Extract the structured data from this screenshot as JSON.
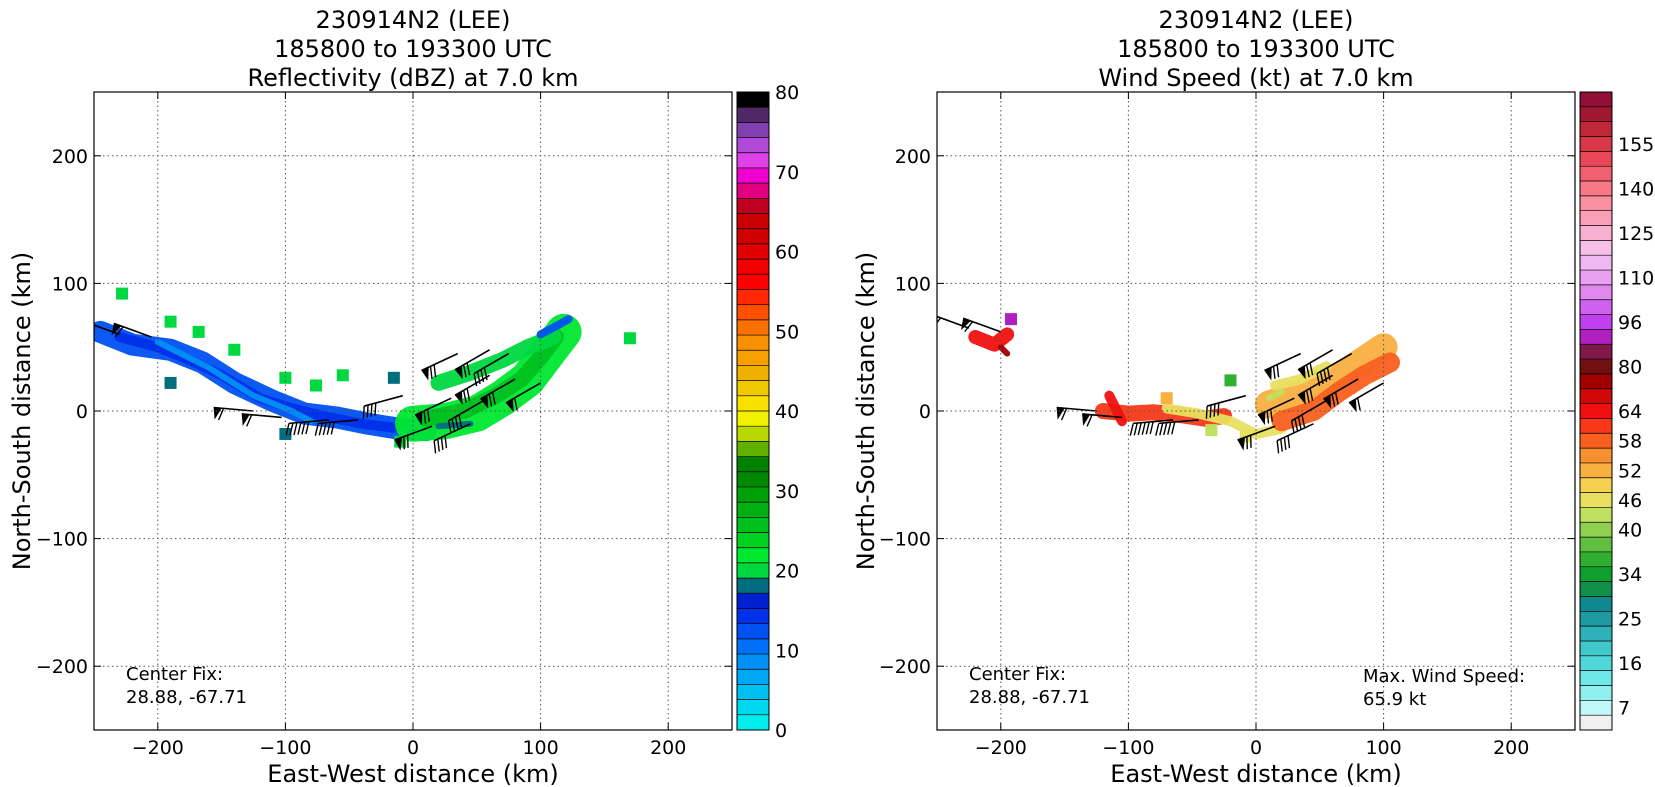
{
  "chart_data": [
    {
      "type": "heatmap",
      "title_lines": [
        "230914N2 (LEE)",
        "185800 to 193300 UTC",
        "Reflectivity (dBZ) at 7.0 km"
      ],
      "xlabel": "East-West distance (km)",
      "ylabel": "North-South distance (km)",
      "xlim": [
        -250,
        250
      ],
      "ylim": [
        -250,
        250
      ],
      "xticks": [
        -200,
        -100,
        0,
        100,
        200
      ],
      "yticks": [
        -200,
        -100,
        0,
        100,
        200
      ],
      "grid": true,
      "annotation_lines": [
        "Center Fix:",
        "28.88, -67.71"
      ],
      "colorbar": {
        "min": 0,
        "max": 80,
        "tick_values": [
          0,
          10,
          20,
          30,
          40,
          50,
          60,
          70,
          80
        ],
        "colors": [
          "#00eeee",
          "#00d8f0",
          "#00c0f2",
          "#00a8f4",
          "#0090f6",
          "#0070f8",
          "#0050f2",
          "#0030ea",
          "#0020d0",
          "#006e7e",
          "#00d840",
          "#00e830",
          "#00d020",
          "#00c020",
          "#00b010",
          "#00a008",
          "#008800",
          "#008000",
          "#60b000",
          "#b8d800",
          "#f0f000",
          "#f8e000",
          "#f0c800",
          "#f0b000",
          "#f8a000",
          "#f89000",
          "#f87000",
          "#ff5000",
          "#ff2800",
          "#ff0000",
          "#f00000",
          "#e00000",
          "#d00000",
          "#c80000",
          "#c00020",
          "#e00080",
          "#f000d0",
          "#e040e8",
          "#b048d8",
          "#8040b0",
          "#502868",
          "#000000"
        ]
      },
      "features": [
        {
          "name": "west-arc-blue",
          "color": "#0050f2",
          "pts": [
            [
              -245,
              62
            ],
            [
              -220,
              52
            ],
            [
              -190,
              48
            ],
            [
              -165,
              38
            ],
            [
              -140,
              22
            ],
            [
              -110,
              8
            ],
            [
              -85,
              -2
            ],
            [
              -60,
              -5
            ],
            [
              -35,
              -10
            ],
            [
              -10,
              -14
            ],
            [
              10,
              -15
            ]
          ],
          "width": 22
        },
        {
          "name": "west-arc-core",
          "color": "#0030ea",
          "pts": [
            [
              -230,
              58
            ],
            [
              -200,
              50
            ],
            [
              -175,
              40
            ],
            [
              -150,
              28
            ],
            [
              -120,
              10
            ],
            [
              -95,
              2
            ],
            [
              -70,
              -4
            ],
            [
              -40,
              -10
            ],
            [
              -15,
              -13
            ]
          ],
          "width": 10
        },
        {
          "name": "west-arc-light",
          "color": "#0090f6",
          "pts": [
            [
              -200,
              54
            ],
            [
              -160,
              34
            ],
            [
              -125,
              12
            ],
            [
              -95,
              0
            ],
            [
              -80,
              -8
            ]
          ],
          "width": 6
        },
        {
          "name": "east-band-green",
          "color": "#00e830",
          "pts": [
            [
              0,
              -10
            ],
            [
              25,
              -8
            ],
            [
              50,
              -2
            ],
            [
              70,
              10
            ],
            [
              90,
              25
            ],
            [
              105,
              45
            ],
            [
              118,
              62
            ]
          ],
          "width": 36
        },
        {
          "name": "east-band-core",
          "color": "#00c020",
          "pts": [
            [
              10,
              -6
            ],
            [
              40,
              0
            ],
            [
              65,
              12
            ],
            [
              85,
              25
            ],
            [
              100,
              42
            ],
            [
              112,
              58
            ]
          ],
          "width": 16
        },
        {
          "name": "east-band-upper",
          "color": "#00d840",
          "pts": [
            [
              20,
              22
            ],
            [
              45,
              30
            ],
            [
              70,
              40
            ],
            [
              90,
              50
            ],
            [
              110,
              58
            ]
          ],
          "width": 16
        },
        {
          "name": "east-band-dark",
          "color": "#006e7e",
          "pts": [
            [
              20,
              -12
            ],
            [
              45,
              -10
            ]
          ],
          "width": 6
        },
        {
          "name": "east-band-blue-edge",
          "color": "#0050f2",
          "pts": [
            [
              100,
              60
            ],
            [
              115,
              68
            ],
            [
              122,
              72
            ]
          ],
          "width": 8
        }
      ],
      "specks": [
        {
          "x": -228,
          "y": 92,
          "color": "#00d840"
        },
        {
          "x": -190,
          "y": 70,
          "color": "#00d840"
        },
        {
          "x": -168,
          "y": 62,
          "color": "#00d840"
        },
        {
          "x": -140,
          "y": 48,
          "color": "#00d840"
        },
        {
          "x": -100,
          "y": 26,
          "color": "#00d840"
        },
        {
          "x": -76,
          "y": 20,
          "color": "#00d840"
        },
        {
          "x": -55,
          "y": 28,
          "color": "#00d840"
        },
        {
          "x": -190,
          "y": 22,
          "color": "#006e7e"
        },
        {
          "x": -100,
          "y": -18,
          "color": "#006e7e"
        },
        {
          "x": -15,
          "y": 26,
          "color": "#006e7e"
        },
        {
          "x": -10,
          "y": -24,
          "color": "#00d840"
        },
        {
          "x": 170,
          "y": 57,
          "color": "#00d840"
        }
      ],
      "barbs": [
        {
          "x": -230,
          "y": 60,
          "angle": 160,
          "flags": 1,
          "lines": 1
        },
        {
          "x": -205,
          "y": 58,
          "angle": 160,
          "flags": 1,
          "lines": 1
        },
        {
          "x": -125,
          "y": 0,
          "angle": 175,
          "flags": 1,
          "lines": 1
        },
        {
          "x": -103,
          "y": -5,
          "angle": 175,
          "flags": 1,
          "lines": 1
        },
        {
          "x": -66,
          "y": -7,
          "angle": 185,
          "flags": 0,
          "lines": 6
        },
        {
          "x": -43,
          "y": -7,
          "angle": 185,
          "flags": 0,
          "lines": 5
        },
        {
          "x": -8,
          "y": 12,
          "angle": 195,
          "flags": 0,
          "lines": 4
        },
        {
          "x": 15,
          "y": -12,
          "angle": 200,
          "flags": 1,
          "lines": 2
        },
        {
          "x": 30,
          "y": 10,
          "angle": 205,
          "flags": 1,
          "lines": 2
        },
        {
          "x": 45,
          "y": -10,
          "angle": 205,
          "flags": 0,
          "lines": 4
        },
        {
          "x": 55,
          "y": 8,
          "angle": 210,
          "flags": 0,
          "lines": 4
        },
        {
          "x": 35,
          "y": 45,
          "angle": 205,
          "flags": 1,
          "lines": 2
        },
        {
          "x": 60,
          "y": 48,
          "angle": 210,
          "flags": 1,
          "lines": 2
        },
        {
          "x": 75,
          "y": 45,
          "angle": 210,
          "flags": 0,
          "lines": 4
        },
        {
          "x": 60,
          "y": 28,
          "angle": 210,
          "flags": 1,
          "lines": 2
        },
        {
          "x": 80,
          "y": 25,
          "angle": 210,
          "flags": 1,
          "lines": 2
        },
        {
          "x": 100,
          "y": 22,
          "angle": 210,
          "flags": 1,
          "lines": 1
        }
      ]
    },
    {
      "type": "heatmap",
      "title_lines": [
        "230914N2 (LEE)",
        "185800 to 193300 UTC",
        "Wind Speed (kt) at 7.0 km"
      ],
      "xlabel": "East-West distance (km)",
      "ylabel": "North-South distance (km)",
      "xlim": [
        -250,
        250
      ],
      "ylim": [
        -250,
        250
      ],
      "xticks": [
        -200,
        -100,
        0,
        100,
        200
      ],
      "yticks": [
        -200,
        -100,
        0,
        100,
        200
      ],
      "grid": true,
      "annotation_lines": [
        "Center Fix:",
        "28.88, -67.71"
      ],
      "annotation2_lines": [
        "Max. Wind Speed:",
        "65.9 kt"
      ],
      "colorbar": {
        "min": 0,
        "max": 40,
        "tick_labels": [
          "7",
          "16",
          "25",
          "34",
          "40",
          "46",
          "52",
          "58",
          "64",
          "80",
          "96",
          "110",
          "125",
          "140",
          "155"
        ],
        "tick_index": [
          1,
          4,
          7,
          10,
          13,
          15,
          17,
          19,
          21,
          24,
          27,
          30,
          33,
          36,
          39
        ],
        "colors": [
          "#f0f0f0",
          "#c0f8f8",
          "#90f0f0",
          "#70e8e8",
          "#50d8d8",
          "#40c8cc",
          "#30b0b8",
          "#2098a0",
          "#108890",
          "#109048",
          "#10a030",
          "#30b030",
          "#60c040",
          "#90d050",
          "#c0e060",
          "#e8e060",
          "#f8d050",
          "#f8b040",
          "#f89030",
          "#f86020",
          "#f83818",
          "#f01010",
          "#d00808",
          "#a00000",
          "#701010",
          "#801848",
          "#b020c0",
          "#c040f0",
          "#d060f0",
          "#e088f0",
          "#e8a0f0",
          "#f0b8f0",
          "#f8c0e8",
          "#f8b0d0",
          "#f8a0b8",
          "#f890a0",
          "#f87888",
          "#f06070",
          "#e84858",
          "#d83848",
          "#c02838",
          "#a01830",
          "#901038"
        ]
      },
      "features": [
        {
          "name": "nw-blob",
          "color": "#f01010",
          "pts": [
            [
              -220,
              58
            ],
            [
              -205,
              52
            ],
            [
              -195,
              60
            ]
          ],
          "width": 14
        },
        {
          "name": "nw-blob-dark",
          "color": "#a00000",
          "pts": [
            [
              -200,
              50
            ],
            [
              -195,
              45
            ]
          ],
          "width": 6
        },
        {
          "name": "west-arc",
          "color": "#f83818",
          "pts": [
            [
              -120,
              0
            ],
            [
              -100,
              -2
            ],
            [
              -80,
              -1
            ],
            [
              -60,
              -3
            ],
            [
              -40,
              -6
            ],
            [
              -25,
              -4
            ]
          ],
          "width": 16
        },
        {
          "name": "west-arc-yellow",
          "color": "#e8e060",
          "pts": [
            [
              -70,
              2
            ],
            [
              -45,
              -2
            ],
            [
              -20,
              -8
            ],
            [
              0,
              -18
            ],
            [
              20,
              -14
            ]
          ],
          "width": 10
        },
        {
          "name": "west-arc-red",
          "color": "#f01010",
          "pts": [
            [
              -115,
              12
            ],
            [
              -105,
              -8
            ]
          ],
          "width": 10
        },
        {
          "name": "east-band-orange",
          "color": "#f8b040",
          "pts": [
            [
              10,
              5
            ],
            [
              30,
              12
            ],
            [
              50,
              20
            ],
            [
              70,
              30
            ],
            [
              85,
              40
            ],
            [
              100,
              50
            ]
          ],
          "width": 28
        },
        {
          "name": "east-band-red",
          "color": "#f86020",
          "pts": [
            [
              20,
              -8
            ],
            [
              45,
              0
            ],
            [
              65,
              15
            ],
            [
              85,
              28
            ],
            [
              105,
              38
            ]
          ],
          "width": 20
        },
        {
          "name": "east-band-yellow",
          "color": "#e8e060",
          "pts": [
            [
              15,
              20
            ],
            [
              35,
              25
            ],
            [
              55,
              35
            ]
          ],
          "width": 10
        },
        {
          "name": "east-band-green",
          "color": "#c0e060",
          "pts": [
            [
              10,
              10
            ],
            [
              20,
              15
            ]
          ],
          "width": 6
        }
      ],
      "specks": [
        {
          "x": -192,
          "y": 72,
          "color": "#b020c0"
        },
        {
          "x": -20,
          "y": 24,
          "color": "#30b030"
        },
        {
          "x": -35,
          "y": -15,
          "color": "#c0e060"
        },
        {
          "x": -8,
          "y": -20,
          "color": "#e8e060"
        },
        {
          "x": -70,
          "y": 10,
          "color": "#f8b040"
        }
      ],
      "barbs": [
        {
          "x": -225,
          "y": 65,
          "angle": 160,
          "flags": 1,
          "lines": 1
        },
        {
          "x": -200,
          "y": 62,
          "angle": 160,
          "flags": 1,
          "lines": 1
        },
        {
          "x": -125,
          "y": 0,
          "angle": 175,
          "flags": 1,
          "lines": 1
        },
        {
          "x": -105,
          "y": -5,
          "angle": 175,
          "flags": 1,
          "lines": 1
        },
        {
          "x": -65,
          "y": -7,
          "angle": 185,
          "flags": 0,
          "lines": 6
        },
        {
          "x": -45,
          "y": -7,
          "angle": 185,
          "flags": 0,
          "lines": 5
        },
        {
          "x": -8,
          "y": 12,
          "angle": 195,
          "flags": 0,
          "lines": 4
        },
        {
          "x": 15,
          "y": -12,
          "angle": 200,
          "flags": 1,
          "lines": 2
        },
        {
          "x": 30,
          "y": 10,
          "angle": 205,
          "flags": 1,
          "lines": 2
        },
        {
          "x": 45,
          "y": -10,
          "angle": 205,
          "flags": 0,
          "lines": 4
        },
        {
          "x": 55,
          "y": 8,
          "angle": 210,
          "flags": 0,
          "lines": 4
        },
        {
          "x": 35,
          "y": 45,
          "angle": 205,
          "flags": 1,
          "lines": 2
        },
        {
          "x": 60,
          "y": 48,
          "angle": 210,
          "flags": 1,
          "lines": 2
        },
        {
          "x": 75,
          "y": 45,
          "angle": 210,
          "flags": 0,
          "lines": 4
        },
        {
          "x": 60,
          "y": 28,
          "angle": 210,
          "flags": 1,
          "lines": 2
        },
        {
          "x": 80,
          "y": 25,
          "angle": 210,
          "flags": 1,
          "lines": 2
        },
        {
          "x": 100,
          "y": 22,
          "angle": 210,
          "flags": 1,
          "lines": 1
        }
      ]
    }
  ]
}
